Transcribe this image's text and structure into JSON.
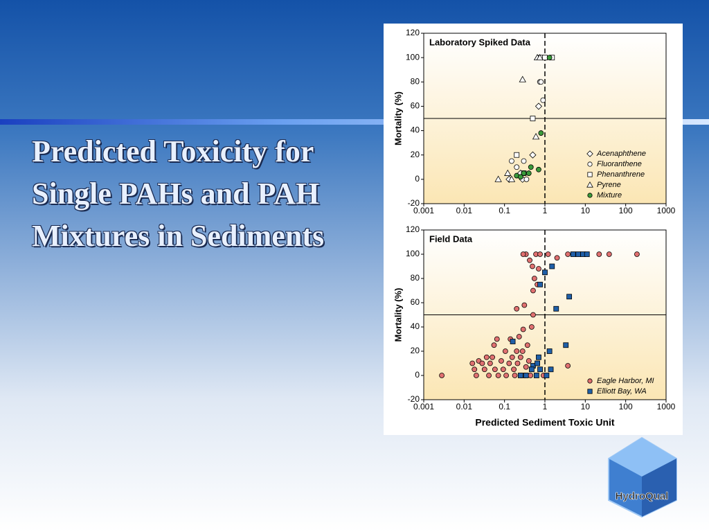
{
  "title": "Predicted Toxicity for Single PAHs and PAH Mixtures in Sediments",
  "logo": "HydroQual",
  "chart_data": [
    {
      "type": "scatter",
      "title": "Laboratory Spiked Data",
      "y_label": "Mortality (%)",
      "log_x": true,
      "xlim": [
        0.001,
        1000
      ],
      "ylim": [
        -20,
        120
      ],
      "xticks": [
        0.001,
        0.01,
        0.1,
        1,
        10,
        100,
        1000
      ],
      "yticks": [
        -20,
        0,
        20,
        40,
        60,
        80,
        100,
        120
      ],
      "vline": 1,
      "hline": 50,
      "legend": "lower right",
      "series": [
        {
          "name": "Acenaphthene",
          "marker": "diamond",
          "color": "#ffffff",
          "x": [
            0.13,
            0.28,
            0.5,
            0.7,
            0.25
          ],
          "y": [
            0,
            0,
            20,
            60,
            5
          ]
        },
        {
          "name": "Fluoranthene",
          "marker": "circle",
          "color": "#ffffff",
          "x": [
            0.75,
            0.8,
            0.9,
            0.2,
            0.3,
            0.15,
            0.35
          ],
          "y": [
            80,
            80,
            65,
            10,
            15,
            15,
            0
          ]
        },
        {
          "name": "Phenanthrene",
          "marker": "square",
          "color": "#ffffff",
          "x": [
            0.5,
            0.2,
            0.3,
            0.8,
            1.5,
            1.0
          ],
          "y": [
            50,
            20,
            5,
            100,
            100,
            100
          ]
        },
        {
          "name": "Pyrene",
          "marker": "triangle",
          "color": "#ffffff",
          "x": [
            0.07,
            0.28,
            0.15,
            0.6,
            0.65,
            0.75,
            0.12
          ],
          "y": [
            0,
            82,
            0,
            35,
            100,
            100,
            5
          ]
        },
        {
          "name": "Mixture",
          "marker": "circle",
          "color": "#3a9a3a",
          "x": [
            0.8,
            0.45,
            0.4,
            0.3,
            0.2,
            0.25,
            0.7,
            1.3
          ],
          "y": [
            38,
            10,
            5,
            5,
            3,
            2,
            8,
            100
          ]
        }
      ]
    },
    {
      "type": "scatter",
      "title": "Field Data",
      "y_label": "Mortality (%)",
      "x_label": "Predicted Sediment Toxic Unit",
      "log_x": true,
      "xlim": [
        0.001,
        1000
      ],
      "ylim": [
        -20,
        120
      ],
      "xticks": [
        0.001,
        0.01,
        0.1,
        1,
        10,
        100,
        1000
      ],
      "yticks": [
        -20,
        0,
        20,
        40,
        60,
        80,
        100,
        120
      ],
      "vline": 1,
      "hline": 50,
      "legend": "lower right",
      "series": [
        {
          "name": "Eagle Harbor, MI",
          "marker": "circle",
          "color": "#e07070",
          "x": [
            0.0028,
            0.016,
            0.018,
            0.02,
            0.023,
            0.028,
            0.032,
            0.036,
            0.041,
            0.044,
            0.05,
            0.055,
            0.065,
            0.058,
            0.07,
            0.083,
            0.093,
            0.105,
            0.11,
            0.13,
            0.14,
            0.155,
            0.17,
            0.18,
            0.2,
            0.21,
            0.23,
            0.25,
            0.26,
            0.28,
            0.29,
            0.31,
            0.32,
            0.34,
            0.37,
            0.4,
            0.44,
            0.47,
            0.51,
            0.49,
            0.55,
            0.6,
            0.34,
            0.29,
            0.65,
            0.7,
            0.42,
            0.51,
            0.2,
            0.76,
            1.2,
            2,
            3.7,
            22,
            39,
            190,
            3.7,
            1.4,
            0.92
          ],
          "y": [
            0,
            10,
            5,
            0,
            12,
            10,
            5,
            15,
            0,
            10,
            15,
            25,
            30,
            5,
            0,
            12,
            5,
            20,
            0,
            10,
            30,
            15,
            5,
            0,
            20,
            10,
            32,
            15,
            0,
            20,
            38,
            58,
            0,
            7,
            25,
            12,
            0,
            40,
            70,
            90,
            80,
            100,
            100,
            100,
            75,
            88,
            95,
            50,
            55,
            100,
            100,
            97,
            100,
            100,
            100,
            100,
            8,
            5,
            0
          ]
        },
        {
          "name": "Elliott Bay, WA",
          "marker": "square",
          "color": "#1f5fa8",
          "x": [
            0.16,
            0.25,
            0.34,
            0.51,
            0.62,
            0.65,
            0.7,
            0.76,
            1.0,
            1.1,
            1.3,
            1.4,
            1.5,
            1.9,
            3.3,
            4,
            5,
            6.7,
            8.8,
            11,
            0.76,
            0.47
          ],
          "y": [
            28,
            0,
            0,
            8,
            0,
            10,
            15,
            75,
            85,
            0,
            20,
            5,
            90,
            55,
            25,
            65,
            100,
            100,
            100,
            100,
            5,
            5
          ]
        }
      ]
    }
  ]
}
